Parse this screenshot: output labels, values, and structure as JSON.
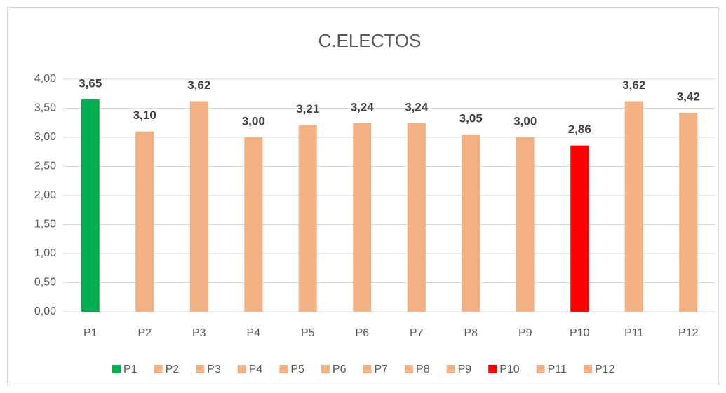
{
  "chart_data": {
    "type": "bar",
    "title": "C.ELECTOS",
    "categories": [
      "P1",
      "P2",
      "P3",
      "P4",
      "P5",
      "P6",
      "P7",
      "P8",
      "P9",
      "P10",
      "P11",
      "P12"
    ],
    "values": [
      3.65,
      3.1,
      3.62,
      3.0,
      3.21,
      3.24,
      3.24,
      3.05,
      3.0,
      2.86,
      3.62,
      3.42
    ],
    "value_labels": [
      "3,65",
      "3,10",
      "3,62",
      "3,00",
      "3,21",
      "3,24",
      "3,24",
      "3,05",
      "3,00",
      "2,86",
      "3,62",
      "3,42"
    ],
    "colors": [
      "#00b050",
      "#f4b183",
      "#f4b183",
      "#f4b183",
      "#f4b183",
      "#f4b183",
      "#f4b183",
      "#f4b183",
      "#f4b183",
      "#ff0000",
      "#f4b183",
      "#f4b183"
    ],
    "ylim": [
      0,
      4
    ],
    "yticks": [
      {
        "value": 0,
        "label": "0,00"
      },
      {
        "value": 0.5,
        "label": "0,50"
      },
      {
        "value": 1,
        "label": "1,00"
      },
      {
        "value": 1.5,
        "label": "1,50"
      },
      {
        "value": 2,
        "label": "2,00"
      },
      {
        "value": 2.5,
        "label": "2,50"
      },
      {
        "value": 3,
        "label": "3,00"
      },
      {
        "value": 3.5,
        "label": "3,50"
      },
      {
        "value": 4,
        "label": "4,00"
      }
    ],
    "grid": true,
    "legend": "bottom"
  }
}
